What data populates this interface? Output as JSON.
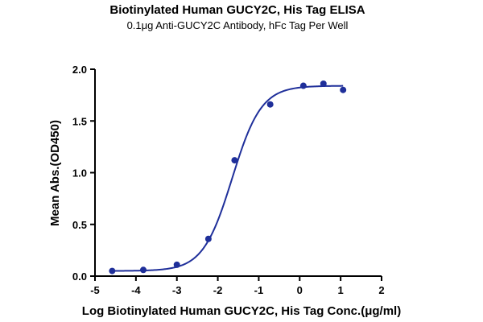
{
  "chart_data": {
    "type": "scatter",
    "title": "Biotinylated Human GUCY2C, His Tag ELISA",
    "subtitle": "0.1μg Anti-GUCY2C Antibody, hFc Tag Per Well",
    "xlabel": "Log Biotinylated Human GUCY2C, His Tag Conc.(μg/ml)",
    "ylabel": "Mean Abs.(OD450)",
    "xlim": [
      -5,
      2
    ],
    "ylim": [
      0.0,
      2.0
    ],
    "x_ticks": [
      -5,
      -4,
      -3,
      -2,
      -1,
      0,
      1,
      2
    ],
    "y_ticks": [
      0.0,
      0.5,
      1.0,
      1.5,
      2.0
    ],
    "x_tick_labels": [
      "-5",
      "-4",
      "-3",
      "-2",
      "-1",
      "0",
      "1",
      "2"
    ],
    "y_tick_labels": [
      "0.0",
      "0.5",
      "1.0",
      "1.5",
      "2.0"
    ],
    "grid": false,
    "legend": "none",
    "color": "#1f2f9a",
    "points": {
      "x": [
        -4.58,
        -3.82,
        -3.0,
        -2.23,
        -1.59,
        -0.72,
        0.09,
        0.58,
        1.06
      ],
      "y": [
        0.05,
        0.06,
        0.11,
        0.36,
        1.12,
        1.66,
        1.84,
        1.86,
        1.8
      ]
    },
    "fit_curve": {
      "bottom": 0.05,
      "top": 1.84,
      "log_ec50": -1.65,
      "hill_slope": 1.22,
      "x_range": [
        -4.58,
        1.06
      ]
    }
  }
}
